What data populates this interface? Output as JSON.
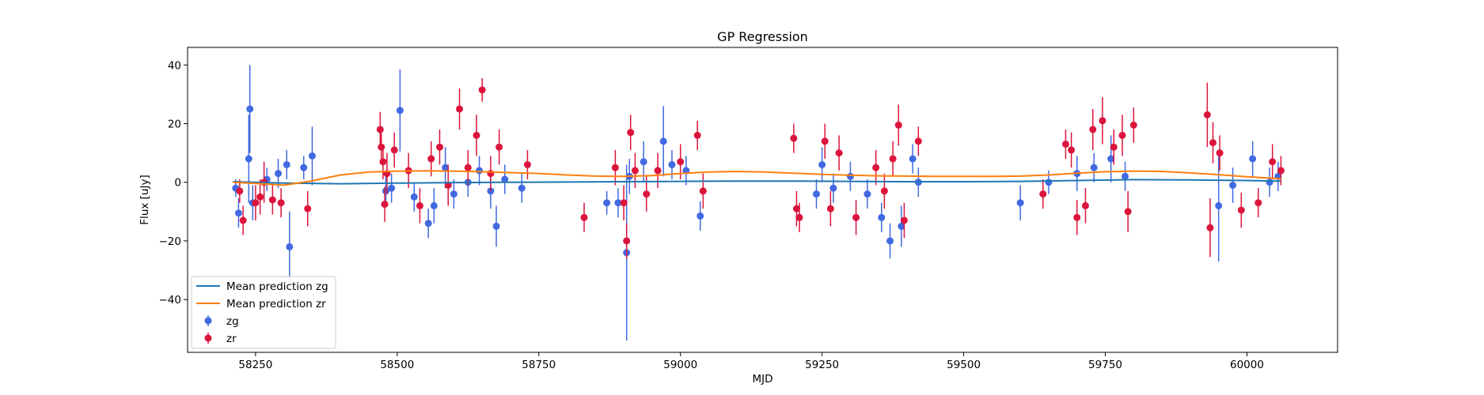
{
  "chart_data": {
    "type": "scatter",
    "title": "GP Regression",
    "xlabel": "MJD",
    "ylabel": "Flux [uJy]",
    "xlim": [
      58130,
      60160
    ],
    "ylim": [
      -58,
      46
    ],
    "xticks": [
      58250,
      58500,
      58750,
      59000,
      59250,
      59500,
      59750,
      60000
    ],
    "yticks": [
      -40,
      -20,
      0,
      20,
      40
    ],
    "grid": false,
    "legend_position": "lower-left",
    "legend": [
      "Mean prediction zg",
      "Mean prediction zr",
      "zg",
      "zr"
    ],
    "colors": {
      "zg_line": "#1f77b4",
      "zr_line": "#ff7f0e",
      "zg_points": "#4169e1",
      "zr_points": "#dc143c"
    },
    "series": [
      {
        "name": "Mean prediction zg",
        "kind": "line",
        "x": [
          58210,
          58300,
          58400,
          58500,
          58600,
          58700,
          58800,
          58900,
          59000,
          59100,
          59200,
          59300,
          59400,
          59500,
          59600,
          59700,
          59800,
          59900,
          60000,
          60060
        ],
        "y": [
          0.2,
          -0.3,
          -0.5,
          -0.3,
          -0.1,
          0.0,
          0.1,
          0.2,
          0.3,
          0.4,
          0.4,
          0.3,
          0.2,
          0.2,
          0.3,
          0.6,
          0.9,
          0.8,
          0.6,
          0.4
        ]
      },
      {
        "name": "Mean prediction zr",
        "kind": "line",
        "x": [
          58210,
          58260,
          58300,
          58350,
          58400,
          58450,
          58500,
          58550,
          58600,
          58650,
          58700,
          58750,
          58800,
          58850,
          58900,
          58950,
          59000,
          59050,
          59100,
          59150,
          59200,
          59250,
          59300,
          59350,
          59400,
          59450,
          59500,
          59550,
          59600,
          59650,
          59700,
          59750,
          59800,
          59850,
          59900,
          59950,
          60000,
          60060
        ],
        "y": [
          0.0,
          -0.5,
          -1.0,
          0.5,
          2.5,
          3.5,
          3.8,
          3.9,
          3.8,
          3.6,
          3.3,
          3.0,
          2.5,
          2.1,
          2.0,
          2.3,
          3.0,
          3.5,
          3.7,
          3.5,
          3.1,
          2.7,
          2.4,
          2.2,
          2.1,
          2.0,
          2.0,
          2.0,
          2.1,
          2.5,
          3.1,
          3.6,
          3.8,
          3.7,
          3.2,
          2.6,
          1.9,
          1.2
        ]
      },
      {
        "name": "zg",
        "kind": "errorbar",
        "x": [
          58215,
          58220,
          58238,
          58240,
          58245,
          58270,
          58290,
          58305,
          58310,
          58335,
          58350,
          58480,
          58490,
          58505,
          58530,
          58555,
          58565,
          58585,
          58600,
          58625,
          58645,
          58665,
          58675,
          58690,
          58720,
          58870,
          58890,
          58905,
          58910,
          58935,
          58970,
          58985,
          59010,
          59035,
          59240,
          59250,
          59270,
          59300,
          59330,
          59355,
          59370,
          59390,
          59410,
          59420,
          59600,
          59650,
          59700,
          59730,
          59760,
          59785,
          59950,
          59975,
          60010,
          60040,
          60055
        ],
        "y": [
          -2,
          -10.5,
          8,
          25,
          -7,
          1,
          3,
          6,
          -22,
          5,
          9,
          -3,
          -2,
          24.5,
          -5,
          -14,
          -8,
          5,
          -4,
          0,
          4,
          -3,
          -15,
          1,
          -2,
          -7,
          -7,
          -24,
          2,
          7,
          14,
          6,
          4,
          -11.5,
          -4,
          6,
          -2,
          2,
          -4,
          -12,
          -20,
          -15,
          8,
          0,
          -7,
          0,
          3,
          5,
          8,
          2,
          -8,
          -1,
          8,
          0,
          2
        ],
        "err": [
          3,
          5,
          15,
          15,
          6,
          4,
          5,
          5,
          12,
          4,
          10,
          5,
          5,
          14,
          5,
          5,
          6,
          7,
          5,
          5,
          5,
          6,
          7,
          5,
          5,
          4,
          5,
          30,
          6,
          7,
          12,
          5,
          5,
          5,
          5,
          6,
          5,
          5,
          5,
          5,
          6,
          7,
          5,
          5,
          6,
          4,
          6,
          5,
          8,
          5,
          19,
          6,
          6,
          5,
          5
        ]
      },
      {
        "name": "zr",
        "kind": "errorbar",
        "x": [
          58222,
          58228,
          58250,
          58258,
          58265,
          58280,
          58295,
          58342,
          58470,
          58472,
          58475,
          58478,
          58482,
          58495,
          58520,
          58540,
          58560,
          58575,
          58590,
          58610,
          58625,
          58640,
          58650,
          58665,
          58680,
          58730,
          58830,
          58885,
          58900,
          58905,
          58912,
          58920,
          58940,
          58960,
          59000,
          59030,
          59040,
          59200,
          59205,
          59210,
          59255,
          59265,
          59280,
          59310,
          59345,
          59360,
          59375,
          59385,
          59395,
          59420,
          59640,
          59680,
          59690,
          59700,
          59715,
          59728,
          59745,
          59765,
          59780,
          59790,
          59800,
          59930,
          59935,
          59940,
          59952,
          59990,
          60020,
          60045,
          60060
        ],
        "y": [
          -3,
          -13,
          -7,
          -5,
          0,
          -6,
          -7,
          -9,
          18,
          12,
          7,
          -7.5,
          3,
          11,
          4,
          -8,
          8,
          12,
          -1,
          25,
          5,
          16,
          31.5,
          3,
          12,
          6,
          -12,
          5,
          -7,
          -20,
          17,
          4,
          -4,
          4,
          7,
          16,
          -3,
          15,
          -9,
          -12,
          14,
          -9,
          10,
          -12,
          5,
          -3,
          8,
          19.5,
          -13,
          14,
          -4,
          13,
          11,
          -12,
          -8,
          18,
          21,
          12,
          16,
          -10,
          19.5,
          23,
          -15.5,
          13.5,
          10,
          -9.5,
          -7,
          7,
          4
        ],
        "err": [
          4,
          5,
          6,
          6,
          7,
          5,
          5,
          6,
          6,
          5,
          6,
          6,
          7,
          6,
          6,
          6,
          6,
          6,
          7,
          7,
          6,
          7,
          4,
          6,
          6,
          5,
          5,
          6,
          6,
          6,
          6,
          6,
          6,
          6,
          6,
          5,
          6,
          5,
          6,
          5,
          6,
          6,
          6,
          6,
          6,
          6,
          6,
          7,
          6,
          5,
          5,
          5,
          6,
          6,
          6,
          7,
          8,
          6,
          7,
          7,
          6,
          11,
          10,
          7,
          6,
          6,
          5,
          6,
          5
        ]
      }
    ]
  }
}
